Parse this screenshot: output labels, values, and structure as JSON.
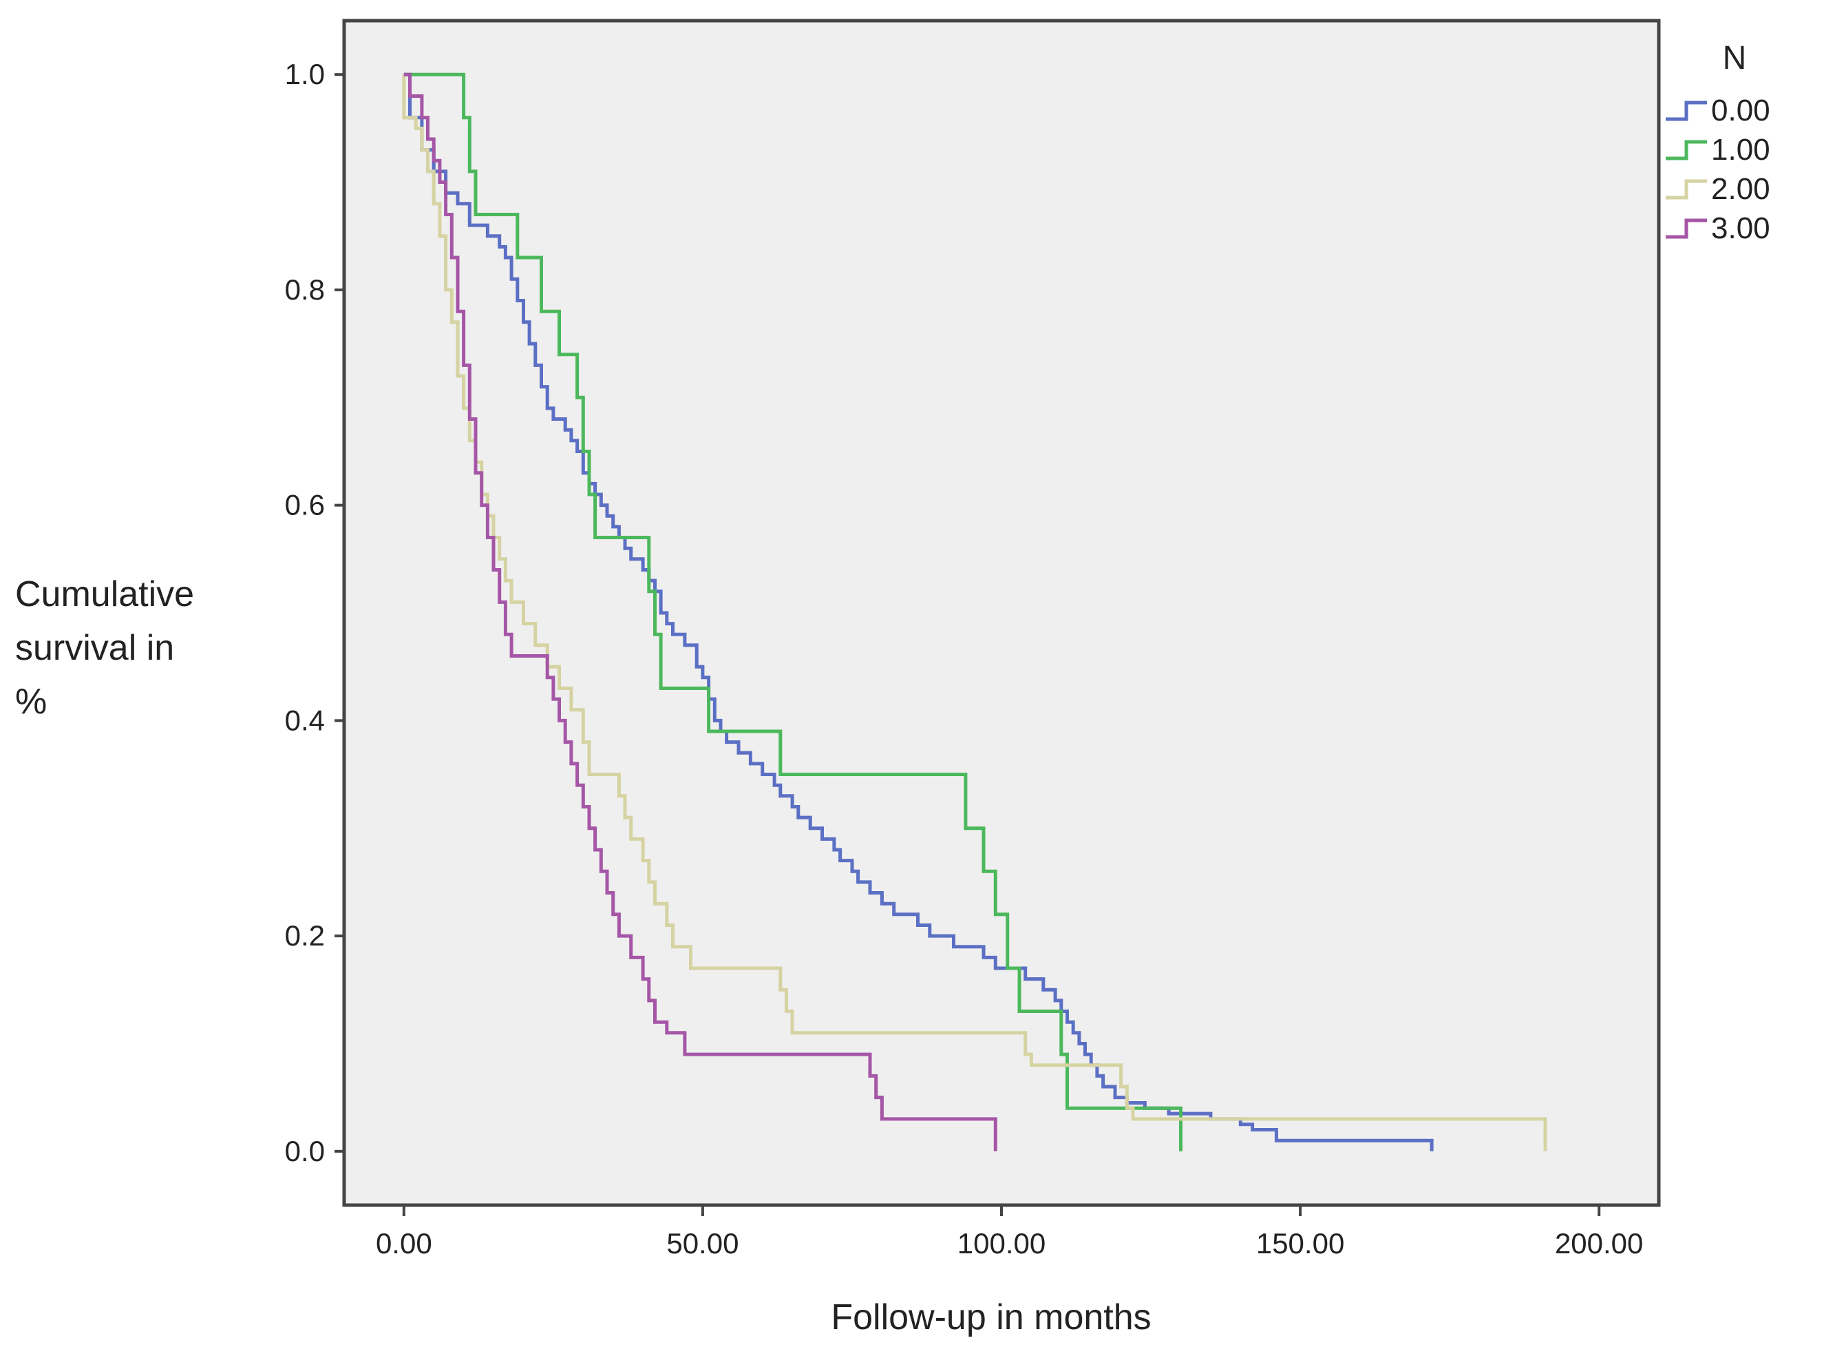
{
  "chart_data": {
    "type": "line",
    "title": "",
    "xlabel": "Follow-up in months",
    "ylabel_lines": [
      "Cumulative",
      "survival in",
      "%"
    ],
    "xlim": [
      -10,
      210
    ],
    "ylim": [
      -0.05,
      1.05
    ],
    "xticks": [
      0,
      50,
      100,
      150,
      200
    ],
    "xtick_labels": [
      "0.00",
      "50.00",
      "100.00",
      "150.00",
      "200.00"
    ],
    "yticks": [
      0.0,
      0.2,
      0.4,
      0.6,
      0.8,
      1.0
    ],
    "ytick_labels": [
      "0.0",
      "0.2",
      "0.4",
      "0.6",
      "0.8",
      "1.0"
    ],
    "grid": false,
    "background": "#efefef",
    "legend": {
      "title": "N",
      "placement": "right-outside-top"
    },
    "step": true,
    "series": [
      {
        "name": "0.00",
        "color": "#5b6fc4",
        "points": [
          [
            0,
            1.0
          ],
          [
            1,
            0.96
          ],
          [
            3,
            0.93
          ],
          [
            5,
            0.91
          ],
          [
            7,
            0.89
          ],
          [
            9,
            0.88
          ],
          [
            11,
            0.86
          ],
          [
            14,
            0.85
          ],
          [
            16,
            0.84
          ],
          [
            17,
            0.83
          ],
          [
            18,
            0.81
          ],
          [
            19,
            0.79
          ],
          [
            20,
            0.77
          ],
          [
            21,
            0.75
          ],
          [
            22,
            0.73
          ],
          [
            23,
            0.71
          ],
          [
            24,
            0.69
          ],
          [
            25,
            0.68
          ],
          [
            27,
            0.67
          ],
          [
            28,
            0.66
          ],
          [
            29,
            0.65
          ],
          [
            30,
            0.63
          ],
          [
            31,
            0.62
          ],
          [
            32,
            0.61
          ],
          [
            33,
            0.6
          ],
          [
            34,
            0.59
          ],
          [
            35,
            0.58
          ],
          [
            36,
            0.57
          ],
          [
            37,
            0.56
          ],
          [
            38,
            0.55
          ],
          [
            40,
            0.54
          ],
          [
            41,
            0.53
          ],
          [
            42,
            0.52
          ],
          [
            43,
            0.5
          ],
          [
            44,
            0.49
          ],
          [
            45,
            0.48
          ],
          [
            47,
            0.47
          ],
          [
            49,
            0.45
          ],
          [
            50,
            0.44
          ],
          [
            51,
            0.42
          ],
          [
            52,
            0.4
          ],
          [
            53,
            0.39
          ],
          [
            54,
            0.38
          ],
          [
            56,
            0.37
          ],
          [
            58,
            0.36
          ],
          [
            60,
            0.35
          ],
          [
            62,
            0.34
          ],
          [
            63,
            0.33
          ],
          [
            65,
            0.32
          ],
          [
            66,
            0.31
          ],
          [
            68,
            0.3
          ],
          [
            70,
            0.29
          ],
          [
            72,
            0.28
          ],
          [
            73,
            0.27
          ],
          [
            75,
            0.26
          ],
          [
            76,
            0.25
          ],
          [
            78,
            0.24
          ],
          [
            80,
            0.23
          ],
          [
            82,
            0.22
          ],
          [
            86,
            0.21
          ],
          [
            88,
            0.2
          ],
          [
            92,
            0.19
          ],
          [
            97,
            0.18
          ],
          [
            99,
            0.17
          ],
          [
            104,
            0.16
          ],
          [
            107,
            0.15
          ],
          [
            109,
            0.14
          ],
          [
            110,
            0.13
          ],
          [
            111,
            0.12
          ],
          [
            112,
            0.11
          ],
          [
            113,
            0.1
          ],
          [
            114,
            0.09
          ],
          [
            115,
            0.08
          ],
          [
            116,
            0.07
          ],
          [
            117,
            0.06
          ],
          [
            119,
            0.05
          ],
          [
            121,
            0.045
          ],
          [
            124,
            0.04
          ],
          [
            128,
            0.035
          ],
          [
            135,
            0.03
          ],
          [
            140,
            0.025
          ],
          [
            142,
            0.02
          ],
          [
            146,
            0.01
          ],
          [
            172,
            0.01
          ],
          [
            172,
            0.0
          ]
        ]
      },
      {
        "name": "1.00",
        "color": "#4cb85c",
        "points": [
          [
            0,
            1.0
          ],
          [
            9,
            1.0
          ],
          [
            10,
            0.96
          ],
          [
            11,
            0.91
          ],
          [
            12,
            0.87
          ],
          [
            18,
            0.87
          ],
          [
            19,
            0.83
          ],
          [
            22,
            0.83
          ],
          [
            23,
            0.78
          ],
          [
            26,
            0.74
          ],
          [
            29,
            0.7
          ],
          [
            30,
            0.65
          ],
          [
            31,
            0.61
          ],
          [
            32,
            0.57
          ],
          [
            40,
            0.57
          ],
          [
            41,
            0.52
          ],
          [
            42,
            0.48
          ],
          [
            43,
            0.43
          ],
          [
            50,
            0.43
          ],
          [
            51,
            0.39
          ],
          [
            62,
            0.39
          ],
          [
            63,
            0.35
          ],
          [
            93,
            0.35
          ],
          [
            94,
            0.3
          ],
          [
            97,
            0.26
          ],
          [
            99,
            0.22
          ],
          [
            101,
            0.17
          ],
          [
            103,
            0.13
          ],
          [
            109,
            0.13
          ],
          [
            110,
            0.09
          ],
          [
            111,
            0.04
          ],
          [
            126,
            0.04
          ],
          [
            130,
            0.04
          ],
          [
            130,
            0.0
          ]
        ]
      },
      {
        "name": "2.00",
        "color": "#d6d3a3",
        "points": [
          [
            0,
            1.0
          ],
          [
            0,
            0.96
          ],
          [
            2,
            0.95
          ],
          [
            3,
            0.93
          ],
          [
            4,
            0.91
          ],
          [
            5,
            0.88
          ],
          [
            6,
            0.85
          ],
          [
            7,
            0.8
          ],
          [
            8,
            0.77
          ],
          [
            9,
            0.72
          ],
          [
            10,
            0.69
          ],
          [
            11,
            0.66
          ],
          [
            12,
            0.64
          ],
          [
            13,
            0.61
          ],
          [
            14,
            0.59
          ],
          [
            15,
            0.57
          ],
          [
            16,
            0.55
          ],
          [
            17,
            0.53
          ],
          [
            18,
            0.51
          ],
          [
            20,
            0.49
          ],
          [
            22,
            0.47
          ],
          [
            24,
            0.45
          ],
          [
            26,
            0.43
          ],
          [
            28,
            0.41
          ],
          [
            30,
            0.38
          ],
          [
            31,
            0.35
          ],
          [
            36,
            0.33
          ],
          [
            37,
            0.31
          ],
          [
            38,
            0.29
          ],
          [
            40,
            0.27
          ],
          [
            41,
            0.25
          ],
          [
            42,
            0.23
          ],
          [
            44,
            0.21
          ],
          [
            45,
            0.19
          ],
          [
            48,
            0.17
          ],
          [
            61,
            0.17
          ],
          [
            63,
            0.15
          ],
          [
            64,
            0.13
          ],
          [
            65,
            0.11
          ],
          [
            102,
            0.11
          ],
          [
            104,
            0.09
          ],
          [
            105,
            0.08
          ],
          [
            119,
            0.08
          ],
          [
            120,
            0.06
          ],
          [
            121,
            0.04
          ],
          [
            122,
            0.03
          ],
          [
            128,
            0.03
          ],
          [
            191,
            0.03
          ],
          [
            191,
            0.0
          ]
        ]
      },
      {
        "name": "3.00",
        "color": "#a556a6",
        "points": [
          [
            0,
            1.0
          ],
          [
            1,
            0.98
          ],
          [
            3,
            0.96
          ],
          [
            4,
            0.94
          ],
          [
            5,
            0.92
          ],
          [
            6,
            0.9
          ],
          [
            7,
            0.87
          ],
          [
            8,
            0.83
          ],
          [
            9,
            0.78
          ],
          [
            10,
            0.73
          ],
          [
            11,
            0.68
          ],
          [
            12,
            0.63
          ],
          [
            13,
            0.6
          ],
          [
            14,
            0.57
          ],
          [
            15,
            0.54
          ],
          [
            16,
            0.51
          ],
          [
            17,
            0.48
          ],
          [
            18,
            0.46
          ],
          [
            22,
            0.46
          ],
          [
            24,
            0.44
          ],
          [
            25,
            0.42
          ],
          [
            26,
            0.4
          ],
          [
            27,
            0.38
          ],
          [
            28,
            0.36
          ],
          [
            29,
            0.34
          ],
          [
            30,
            0.32
          ],
          [
            31,
            0.3
          ],
          [
            32,
            0.28
          ],
          [
            33,
            0.26
          ],
          [
            34,
            0.24
          ],
          [
            35,
            0.22
          ],
          [
            36,
            0.2
          ],
          [
            38,
            0.18
          ],
          [
            40,
            0.16
          ],
          [
            41,
            0.14
          ],
          [
            42,
            0.12
          ],
          [
            44,
            0.11
          ],
          [
            47,
            0.09
          ],
          [
            77,
            0.09
          ],
          [
            78,
            0.07
          ],
          [
            79,
            0.05
          ],
          [
            80,
            0.03
          ],
          [
            99,
            0.03
          ],
          [
            99,
            0.0
          ]
        ]
      }
    ]
  }
}
